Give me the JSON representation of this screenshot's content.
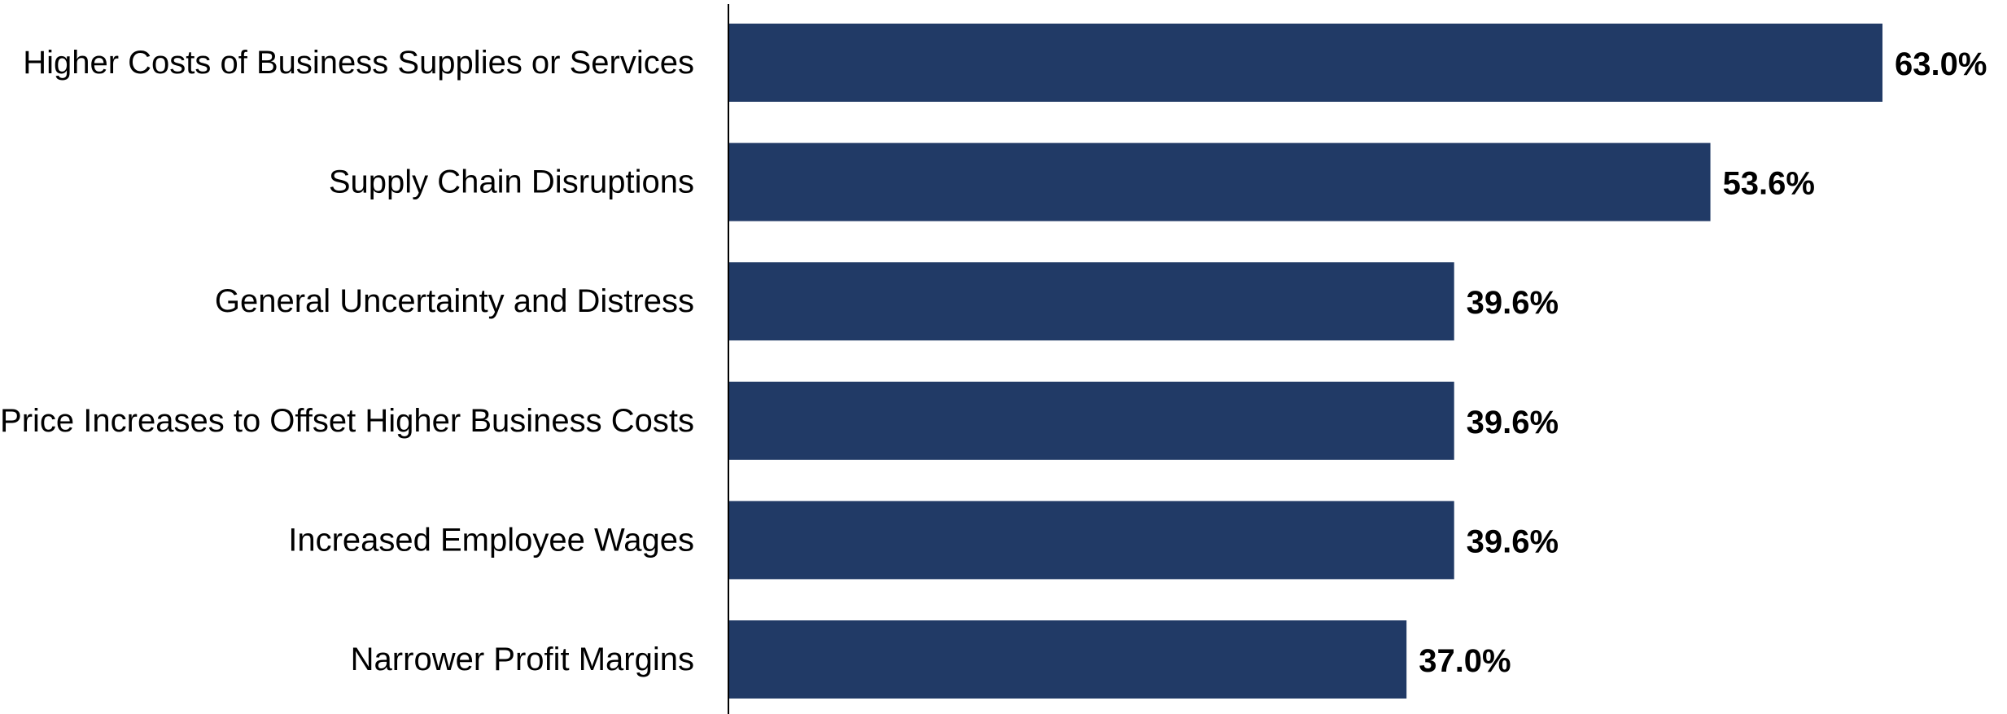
{
  "chart_data": {
    "type": "bar",
    "orientation": "horizontal",
    "categories": [
      "Higher Costs of Business Supplies or Services",
      "Supply Chain Disruptions",
      "General Uncertainty and Distress",
      "Price Increases to Offset Higher Business Costs",
      "Increased Employee Wages",
      "Narrower Profit Margins"
    ],
    "values": [
      63.0,
      53.6,
      39.6,
      39.6,
      39.6,
      37.0
    ],
    "value_labels": [
      "63.0%",
      "53.6%",
      "39.6%",
      "39.6%",
      "39.6%",
      "37.0%"
    ],
    "title": "",
    "xlabel": "",
    "ylabel": "",
    "xlim": [
      0,
      70
    ],
    "grid": false,
    "legend": "none",
    "bar_color": "#213a66"
  }
}
